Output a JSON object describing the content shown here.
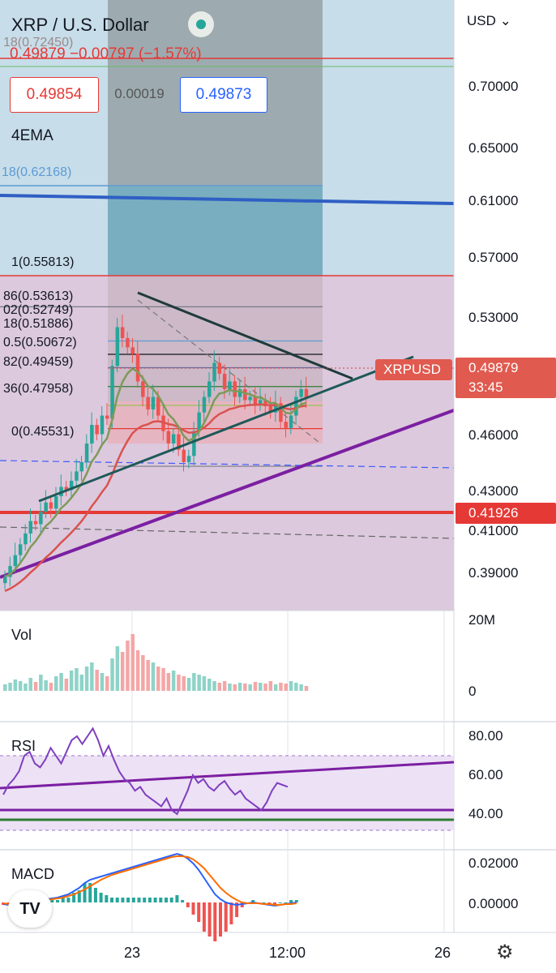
{
  "header": {
    "title": "XRP / U.S. Dollar",
    "fib_top_label": "18(0.72450)",
    "ohlc_line": "0.49879 −0.00797 (−1.57%)",
    "bid": "0.49854",
    "spread": "0.00019",
    "ask": "0.49873",
    "indicator_label": "4EMA",
    "fib_extension_label": "18(0.62168)"
  },
  "fib_levels": [
    {
      "label": "1(0.55813)",
      "value": 0.55813,
      "color": "#787b86"
    },
    {
      "label": "86(0.53613)",
      "value": 0.53613,
      "color": "#5b9bd5"
    },
    {
      "label": "02(0.52749)",
      "value": 0.52749,
      "color": "#131722"
    },
    {
      "label": "18(0.51886)",
      "value": 0.51886,
      "color": "#5b6ea8"
    },
    {
      "label": "0.5(0.50672)",
      "value": 0.50672,
      "color": "#2e7d32"
    },
    {
      "label": "82(0.49459)",
      "value": 0.49459,
      "color": "#8bc34a"
    },
    {
      "label": "36(0.47958)",
      "value": 0.47958,
      "color": "#e53935"
    },
    {
      "label": "0(0.45531)",
      "value": 0.45531,
      "color": "#787b86"
    }
  ],
  "price_axis": {
    "currency": "USD",
    "ticks": [
      {
        "label": "0.70000",
        "value": 0.7
      },
      {
        "label": "0.65000",
        "value": 0.65
      },
      {
        "label": "0.61000",
        "value": 0.61
      },
      {
        "label": "0.57000",
        "value": 0.57
      },
      {
        "label": "0.53000",
        "value": 0.53
      },
      {
        "label": "0.46000",
        "value": 0.46
      },
      {
        "label": "0.43000",
        "value": 0.43
      },
      {
        "label": "0.41000",
        "value": 0.41
      },
      {
        "label": "0.39000",
        "value": 0.39
      }
    ],
    "symbol_tag": "XRPUSD",
    "last_price": "0.49879",
    "countdown": "33:45",
    "horizontal_level": "0.41926"
  },
  "volume_pane": {
    "label": "Vol",
    "ticks": [
      "20M",
      "0"
    ]
  },
  "rsi_pane": {
    "label": "RSI",
    "ticks": [
      "80.00",
      "60.00",
      "40.00"
    ]
  },
  "macd_pane": {
    "label": "MACD",
    "ticks": [
      "0.02000",
      "0.00000"
    ]
  },
  "time_axis": {
    "labels": [
      "23",
      "12:00",
      "26"
    ]
  },
  "colors": {
    "up": "#26a69a",
    "down": "#ef5350",
    "ema_green": "#7d9a5a",
    "ema_red": "#d9534f",
    "trend_purple": "#7b1fa2",
    "blue_line": "#2f5fc4"
  },
  "chart_data": {
    "type": "candlestick",
    "title": "XRP / U.S. Dollar",
    "ylim": [
      0.375,
      0.735
    ],
    "close_series": [
      0.384,
      0.391,
      0.398,
      0.405,
      0.412,
      0.42,
      0.418,
      0.426,
      0.432,
      0.428,
      0.436,
      0.442,
      0.44,
      0.446,
      0.452,
      0.458,
      0.47,
      0.482,
      0.476,
      0.488,
      0.486,
      0.52,
      0.545,
      0.538,
      0.532,
      0.528,
      0.51,
      0.5,
      0.492,
      0.5,
      0.488,
      0.478,
      0.47,
      0.476,
      0.466,
      0.458,
      0.462,
      0.478,
      0.49,
      0.5,
      0.51,
      0.522,
      0.515,
      0.505,
      0.51,
      0.5,
      0.505,
      0.498,
      0.5,
      0.495,
      0.498,
      0.494,
      0.49,
      0.496,
      0.484,
      0.48,
      0.488,
      0.5,
      0.505,
      0.499
    ],
    "annotations": [
      "XRPUSD 0.49879",
      "0.41926"
    ]
  }
}
